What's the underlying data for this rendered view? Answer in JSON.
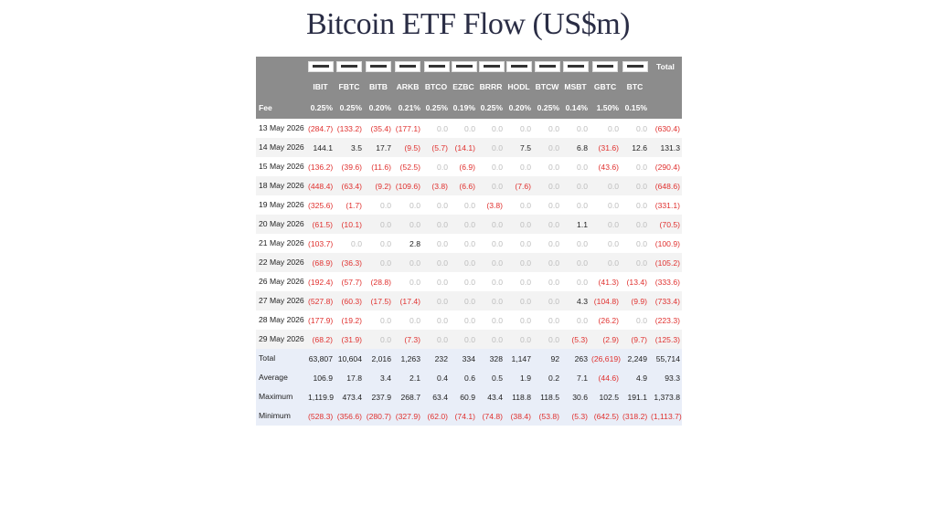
{
  "title": "Bitcoin ETF Flow (US$m)",
  "header": {
    "total_label": "Total",
    "tickers": [
      "IBIT",
      "FBTC",
      "BITB",
      "ARKB",
      "BTCO",
      "EZBC",
      "BRRR",
      "HODL",
      "BTCW",
      "MSBT",
      "GBTC",
      "BTC"
    ],
    "fee_label": "Fee",
    "fees": [
      "0.25%",
      "0.25%",
      "0.20%",
      "0.21%",
      "0.25%",
      "0.19%",
      "0.25%",
      "0.20%",
      "0.25%",
      "0.14%",
      "1.50%",
      "0.15%"
    ]
  },
  "rows": [
    {
      "label": "13 May 2026",
      "cells": [
        "(284.7)",
        "(133.2)",
        "(35.4)",
        "(177.1)",
        "0.0",
        "0.0",
        "0.0",
        "0.0",
        "0.0",
        "0.0",
        "0.0",
        "0.0",
        "(630.4)"
      ]
    },
    {
      "label": "14 May 2026",
      "cells": [
        "144.1",
        "3.5",
        "17.7",
        "(9.5)",
        "(5.7)",
        "(14.1)",
        "0.0",
        "7.5",
        "0.0",
        "6.8",
        "(31.6)",
        "12.6",
        "131.3"
      ]
    },
    {
      "label": "15 May 2026",
      "cells": [
        "(136.2)",
        "(39.6)",
        "(11.6)",
        "(52.5)",
        "0.0",
        "(6.9)",
        "0.0",
        "0.0",
        "0.0",
        "0.0",
        "(43.6)",
        "0.0",
        "(290.4)"
      ]
    },
    {
      "label": "18 May 2026",
      "cells": [
        "(448.4)",
        "(63.4)",
        "(9.2)",
        "(109.6)",
        "(3.8)",
        "(6.6)",
        "0.0",
        "(7.6)",
        "0.0",
        "0.0",
        "0.0",
        "0.0",
        "(648.6)"
      ]
    },
    {
      "label": "19 May 2026",
      "cells": [
        "(325.6)",
        "(1.7)",
        "0.0",
        "0.0",
        "0.0",
        "0.0",
        "(3.8)",
        "0.0",
        "0.0",
        "0.0",
        "0.0",
        "0.0",
        "(331.1)"
      ]
    },
    {
      "label": "20 May 2026",
      "cells": [
        "(61.5)",
        "(10.1)",
        "0.0",
        "0.0",
        "0.0",
        "0.0",
        "0.0",
        "0.0",
        "0.0",
        "1.1",
        "0.0",
        "0.0",
        "(70.5)"
      ]
    },
    {
      "label": "21 May 2026",
      "cells": [
        "(103.7)",
        "0.0",
        "0.0",
        "2.8",
        "0.0",
        "0.0",
        "0.0",
        "0.0",
        "0.0",
        "0.0",
        "0.0",
        "0.0",
        "(100.9)"
      ]
    },
    {
      "label": "22 May 2026",
      "cells": [
        "(68.9)",
        "(36.3)",
        "0.0",
        "0.0",
        "0.0",
        "0.0",
        "0.0",
        "0.0",
        "0.0",
        "0.0",
        "0.0",
        "0.0",
        "(105.2)"
      ]
    },
    {
      "label": "26 May 2026",
      "cells": [
        "(192.4)",
        "(57.7)",
        "(28.8)",
        "0.0",
        "0.0",
        "0.0",
        "0.0",
        "0.0",
        "0.0",
        "0.0",
        "(41.3)",
        "(13.4)",
        "(333.6)"
      ]
    },
    {
      "label": "27 May 2026",
      "cells": [
        "(527.8)",
        "(60.3)",
        "(17.5)",
        "(17.4)",
        "0.0",
        "0.0",
        "0.0",
        "0.0",
        "0.0",
        "4.3",
        "(104.8)",
        "(9.9)",
        "(733.4)"
      ]
    },
    {
      "label": "28 May 2026",
      "cells": [
        "(177.9)",
        "(19.2)",
        "0.0",
        "0.0",
        "0.0",
        "0.0",
        "0.0",
        "0.0",
        "0.0",
        "0.0",
        "(26.2)",
        "0.0",
        "(223.3)"
      ]
    },
    {
      "label": "29 May 2026",
      "cells": [
        "(68.2)",
        "(31.9)",
        "0.0",
        "(7.3)",
        "0.0",
        "0.0",
        "0.0",
        "0.0",
        "0.0",
        "(5.3)",
        "(2.9)",
        "(9.7)",
        "(125.3)"
      ]
    }
  ],
  "summary": [
    {
      "label": "Total",
      "cells": [
        "63,807",
        "10,604",
        "2,016",
        "1,263",
        "232",
        "334",
        "328",
        "1,147",
        "92",
        "263",
        "(26,619)",
        "2,249",
        "55,714"
      ]
    },
    {
      "label": "Average",
      "cells": [
        "106.9",
        "17.8",
        "3.4",
        "2.1",
        "0.4",
        "0.6",
        "0.5",
        "1.9",
        "0.2",
        "7.1",
        "(44.6)",
        "4.9",
        "93.3"
      ]
    },
    {
      "label": "Maximum",
      "cells": [
        "1,119.9",
        "473.4",
        "237.9",
        "268.7",
        "63.4",
        "60.9",
        "43.4",
        "118.8",
        "118.5",
        "30.6",
        "102.5",
        "191.1",
        "1,373.8"
      ]
    },
    {
      "label": "Minimum",
      "cells": [
        "(528.3)",
        "(356.6)",
        "(280.7)",
        "(327.9)",
        "(62.0)",
        "(74.1)",
        "(74.8)",
        "(38.4)",
        "(53.8)",
        "(5.3)",
        "(642.5)",
        "(318.2)",
        "(1,113.7)"
      ]
    }
  ]
}
